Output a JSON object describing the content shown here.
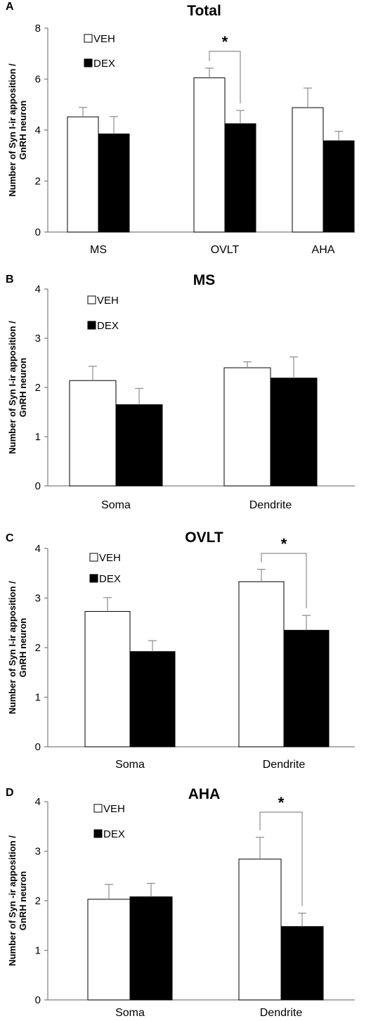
{
  "chart_data": [
    {
      "id": "A",
      "type": "bar",
      "panel_label": "A",
      "title": "Total",
      "ylabel_lines": [
        "Number of Syn I-ir apposition /",
        "GnRH neuron"
      ],
      "ylim": [
        0,
        8
      ],
      "yticks": [
        0,
        2,
        4,
        6,
        8
      ],
      "categories": [
        "MS",
        "OVLT",
        "AHA"
      ],
      "series": [
        {
          "name": "VEH",
          "fill": "#ffffff",
          "values": [
            4.52,
            6.05,
            4.88
          ],
          "errors": [
            0.37,
            0.38,
            0.77
          ]
        },
        {
          "name": "DEX",
          "fill": "#000000",
          "values": [
            3.85,
            4.25,
            3.58
          ],
          "errors": [
            0.68,
            0.52,
            0.37
          ]
        }
      ],
      "significance": [
        {
          "category": 1,
          "label": "*"
        }
      ]
    },
    {
      "id": "B",
      "type": "bar",
      "panel_label": "B",
      "title": "MS",
      "ylabel_lines": [
        "Number of Syn I-ir apposition /",
        "GnRH neuron"
      ],
      "ylim": [
        0,
        4
      ],
      "yticks": [
        0,
        1,
        2,
        3,
        4
      ],
      "categories": [
        "Soma",
        "Dendrite"
      ],
      "series": [
        {
          "name": "VEH",
          "fill": "#ffffff",
          "values": [
            2.14,
            2.4
          ],
          "errors": [
            0.29,
            0.12
          ]
        },
        {
          "name": "DEX",
          "fill": "#000000",
          "values": [
            1.65,
            2.19
          ],
          "errors": [
            0.33,
            0.43
          ]
        }
      ],
      "significance": []
    },
    {
      "id": "C",
      "type": "bar",
      "panel_label": "C",
      "title": "OVLT",
      "ylabel_lines": [
        "Number of Syn I-ir apposition /",
        "GnRH neuron"
      ],
      "ylim": [
        0,
        4
      ],
      "yticks": [
        0,
        1,
        2,
        3,
        4
      ],
      "categories": [
        "Soma",
        "Dendrite"
      ],
      "series": [
        {
          "name": "VEH",
          "fill": "#ffffff",
          "values": [
            2.73,
            3.33
          ],
          "errors": [
            0.28,
            0.25
          ]
        },
        {
          "name": "DEX",
          "fill": "#000000",
          "values": [
            1.92,
            2.35
          ],
          "errors": [
            0.22,
            0.3
          ]
        }
      ],
      "significance": [
        {
          "category": 1,
          "label": "*"
        }
      ]
    },
    {
      "id": "D",
      "type": "bar",
      "panel_label": "D",
      "title": "AHA",
      "ylabel_lines": [
        "Number of Syn -ir  apposition /",
        "GnRH neuron"
      ],
      "ylim": [
        0,
        4
      ],
      "yticks": [
        0,
        1,
        2,
        3,
        4
      ],
      "categories": [
        "Soma",
        "Dendrite"
      ],
      "series": [
        {
          "name": "VEH",
          "fill": "#ffffff",
          "values": [
            2.03,
            2.84
          ],
          "errors": [
            0.3,
            0.44
          ]
        },
        {
          "name": "DEX",
          "fill": "#000000",
          "values": [
            2.08,
            1.48
          ],
          "errors": [
            0.27,
            0.27
          ]
        }
      ],
      "significance": [
        {
          "category": 1,
          "label": "*"
        }
      ]
    }
  ]
}
